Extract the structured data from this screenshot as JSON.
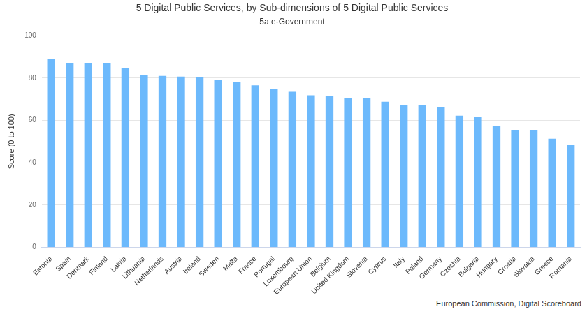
{
  "chart_data": {
    "type": "bar",
    "title": "5 Digital Public Services, by Sub-dimensions of 5 Digital Public Services",
    "subtitle": "5a e-Government",
    "y_label": "Score (0 to 100)",
    "source": "European Commission, Digital Scoreboard",
    "categories": [
      "Estonia",
      "Spain",
      "Denmark",
      "Finland",
      "Latvia",
      "Lithuania",
      "Netherlands",
      "Austria",
      "Ireland",
      "Sweden",
      "Malta",
      "France",
      "Portugal",
      "Luxembourg",
      "European Union",
      "Belgium",
      "United Kingdom",
      "Slovenia",
      "Cyprus",
      "Italy",
      "Poland",
      "Germany",
      "Czechia",
      "Bulgaria",
      "Hungary",
      "Croatia",
      "Slovakia",
      "Greece",
      "Romania"
    ],
    "values": [
      89.2,
      87.2,
      87.0,
      86.9,
      84.9,
      81.4,
      81.0,
      80.7,
      80.4,
      79.3,
      78.0,
      76.6,
      74.9,
      73.5,
      71.9,
      71.7,
      70.5,
      70.4,
      68.8,
      67.2,
      67.2,
      66.1,
      62.2,
      61.5,
      57.5,
      55.5,
      55.5,
      51.3,
      48.3
    ],
    "color": "#6cb9fc",
    "ylim": [
      0,
      100
    ],
    "yticks": [
      0,
      20,
      40,
      60,
      80,
      100
    ],
    "grid": true
  }
}
